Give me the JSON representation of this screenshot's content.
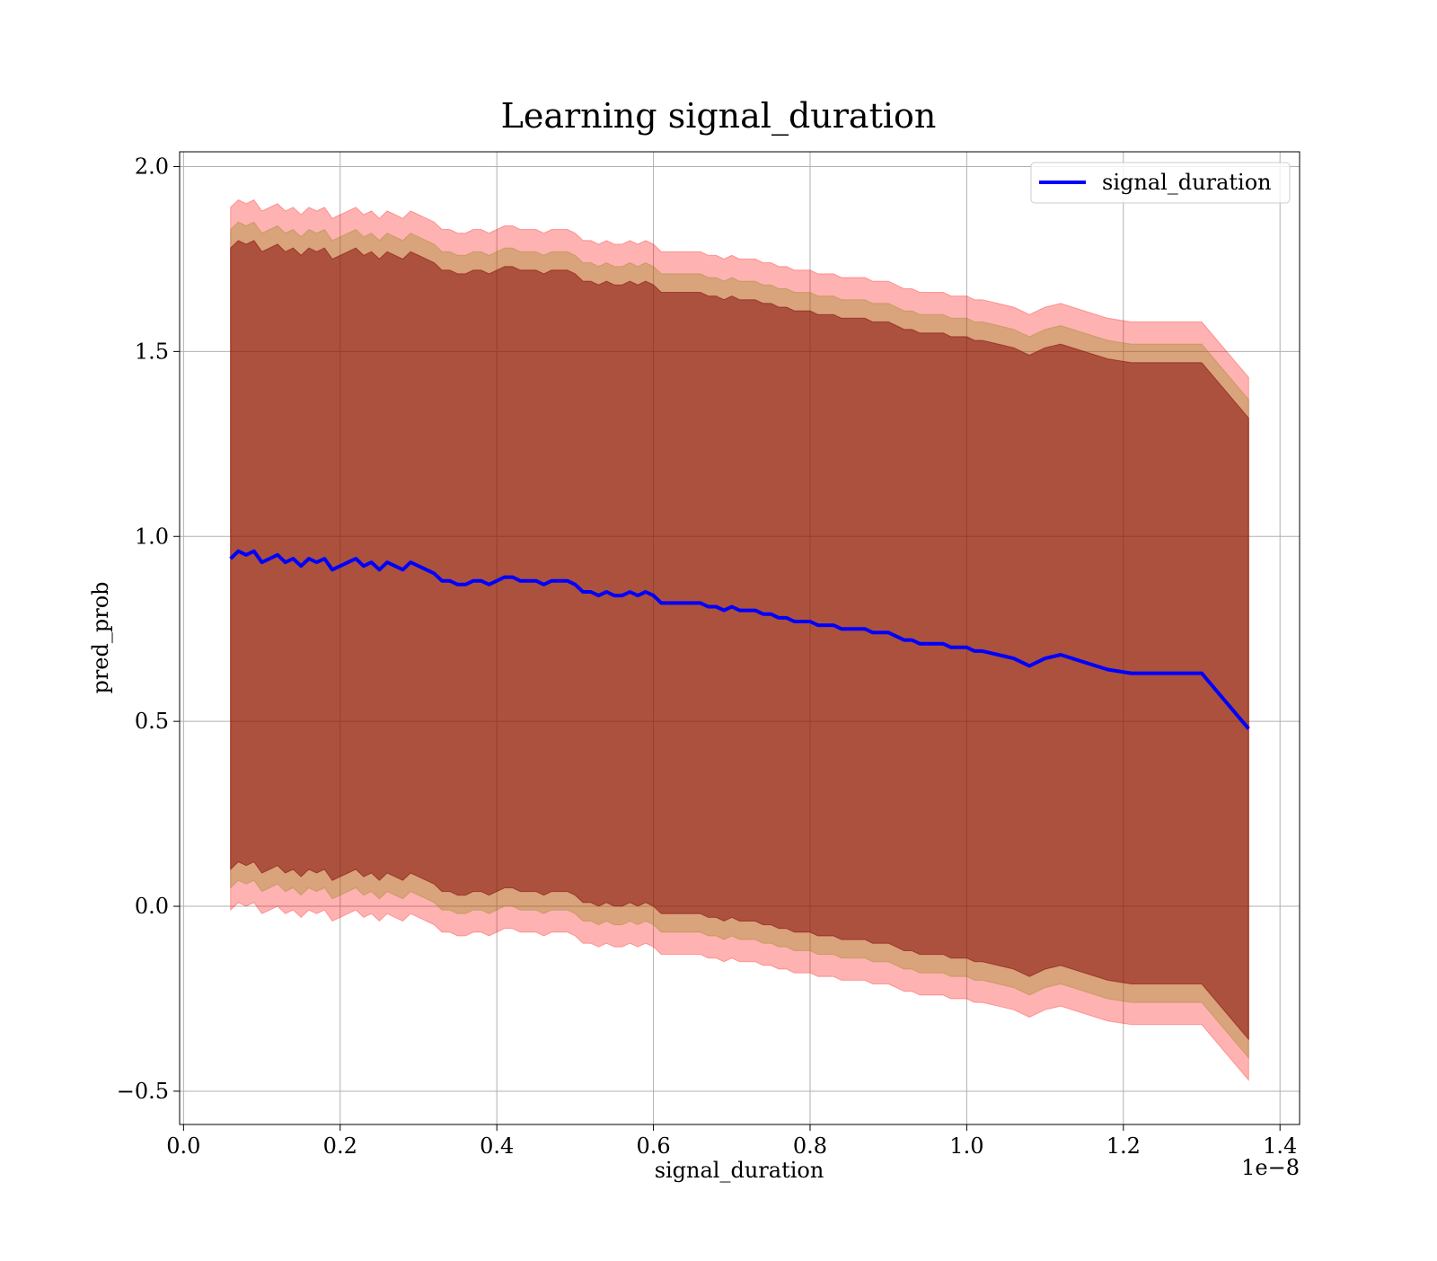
{
  "chart_data": {
    "type": "line",
    "title": "Learning signal_duration",
    "xlabel": "signal_duration",
    "ylabel": "pred_prob",
    "x_offset_label": "1e−8",
    "xlim": [
      -0.005,
      1.425
    ],
    "ylim": [
      -0.59,
      2.04
    ],
    "x_ticks": [
      0.0,
      0.2,
      0.4,
      0.6,
      0.8,
      1.0,
      1.2,
      1.4
    ],
    "x_tick_labels": [
      "0.0",
      "0.2",
      "0.4",
      "0.6",
      "0.8",
      "1.0",
      "1.2",
      "1.4"
    ],
    "y_ticks": [
      -0.5,
      0.0,
      0.5,
      1.0,
      1.5,
      2.0
    ],
    "y_tick_labels": [
      "−0.5",
      "0.0",
      "0.5",
      "1.0",
      "1.5",
      "2.0"
    ],
    "grid": true,
    "legend_position": "top-right",
    "series": [
      {
        "name": "signal_duration",
        "color": "#0000ff",
        "x": [
          0.06,
          0.07,
          0.08,
          0.09,
          0.1,
          0.11,
          0.12,
          0.13,
          0.14,
          0.15,
          0.16,
          0.17,
          0.18,
          0.19,
          0.2,
          0.21,
          0.22,
          0.23,
          0.24,
          0.25,
          0.26,
          0.27,
          0.28,
          0.29,
          0.3,
          0.31,
          0.32,
          0.33,
          0.34,
          0.35,
          0.36,
          0.37,
          0.38,
          0.39,
          0.4,
          0.41,
          0.42,
          0.43,
          0.44,
          0.45,
          0.46,
          0.47,
          0.48,
          0.49,
          0.5,
          0.51,
          0.52,
          0.53,
          0.54,
          0.55,
          0.56,
          0.57,
          0.58,
          0.59,
          0.6,
          0.61,
          0.62,
          0.63,
          0.64,
          0.65,
          0.66,
          0.67,
          0.68,
          0.69,
          0.7,
          0.71,
          0.72,
          0.73,
          0.74,
          0.75,
          0.76,
          0.77,
          0.78,
          0.79,
          0.8,
          0.81,
          0.82,
          0.83,
          0.84,
          0.85,
          0.86,
          0.87,
          0.88,
          0.89,
          0.9,
          0.91,
          0.92,
          0.93,
          0.94,
          0.95,
          0.96,
          0.97,
          0.98,
          0.99,
          1.0,
          1.01,
          1.02,
          1.04,
          1.06,
          1.08,
          1.1,
          1.12,
          1.15,
          1.18,
          1.21,
          1.25,
          1.3,
          1.36
        ],
        "values": [
          0.94,
          0.96,
          0.95,
          0.96,
          0.93,
          0.94,
          0.95,
          0.93,
          0.94,
          0.92,
          0.94,
          0.93,
          0.94,
          0.91,
          0.92,
          0.93,
          0.94,
          0.92,
          0.93,
          0.91,
          0.93,
          0.92,
          0.91,
          0.93,
          0.92,
          0.91,
          0.9,
          0.88,
          0.88,
          0.87,
          0.87,
          0.88,
          0.88,
          0.87,
          0.88,
          0.89,
          0.89,
          0.88,
          0.88,
          0.88,
          0.87,
          0.88,
          0.88,
          0.88,
          0.87,
          0.85,
          0.85,
          0.84,
          0.85,
          0.84,
          0.84,
          0.85,
          0.84,
          0.85,
          0.84,
          0.82,
          0.82,
          0.82,
          0.82,
          0.82,
          0.82,
          0.81,
          0.81,
          0.8,
          0.81,
          0.8,
          0.8,
          0.8,
          0.79,
          0.79,
          0.78,
          0.78,
          0.77,
          0.77,
          0.77,
          0.76,
          0.76,
          0.76,
          0.75,
          0.75,
          0.75,
          0.75,
          0.74,
          0.74,
          0.74,
          0.73,
          0.72,
          0.72,
          0.71,
          0.71,
          0.71,
          0.71,
          0.7,
          0.7,
          0.7,
          0.69,
          0.69,
          0.68,
          0.67,
          0.65,
          0.67,
          0.68,
          0.66,
          0.64,
          0.63,
          0.63,
          0.63,
          0.48
        ]
      }
    ],
    "bands": [
      {
        "color": "#ff0000",
        "opacity": 0.3,
        "offset": 0.95
      },
      {
        "color": "#808000",
        "opacity": 0.3,
        "offset": 0.89
      },
      {
        "color": "#800000",
        "opacity": 0.5,
        "offset": 0.84
      }
    ]
  }
}
